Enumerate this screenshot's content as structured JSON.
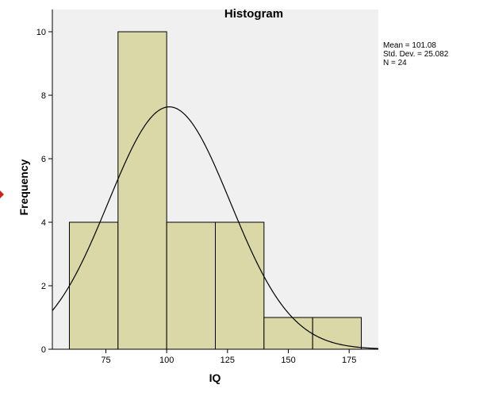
{
  "chart_data": {
    "type": "bar",
    "title": "Histogram",
    "xlabel": "IQ",
    "ylabel": "Frequency",
    "bins": [
      {
        "start": 60,
        "end": 80,
        "count": 4
      },
      {
        "start": 80,
        "end": 100,
        "count": 10
      },
      {
        "start": 100,
        "end": 120,
        "count": 4
      },
      {
        "start": 120,
        "end": 140,
        "count": 4
      },
      {
        "start": 140,
        "end": 160,
        "count": 1
      },
      {
        "start": 160,
        "end": 180,
        "count": 1
      }
    ],
    "xlim": [
      53,
      187
    ],
    "ylim": [
      0,
      10.7
    ],
    "x_ticks": [
      75,
      100,
      125,
      150,
      175
    ],
    "y_ticks": [
      0,
      2,
      4,
      6,
      8,
      10
    ],
    "normal_curve": {
      "mean": 101.08,
      "sd": 25.082,
      "n": 24,
      "bin_width": 20
    },
    "stats": {
      "mean_text": "Mean = 101.08",
      "sd_text": "Std. Dev. = 25.082",
      "n_text": "N = 24"
    },
    "colors": {
      "plot_background": "#f0f0f0",
      "bar_fill": "#d9d8a6",
      "bar_stroke": "#000000",
      "curve": "#000000",
      "marker": "#cc2222"
    }
  }
}
